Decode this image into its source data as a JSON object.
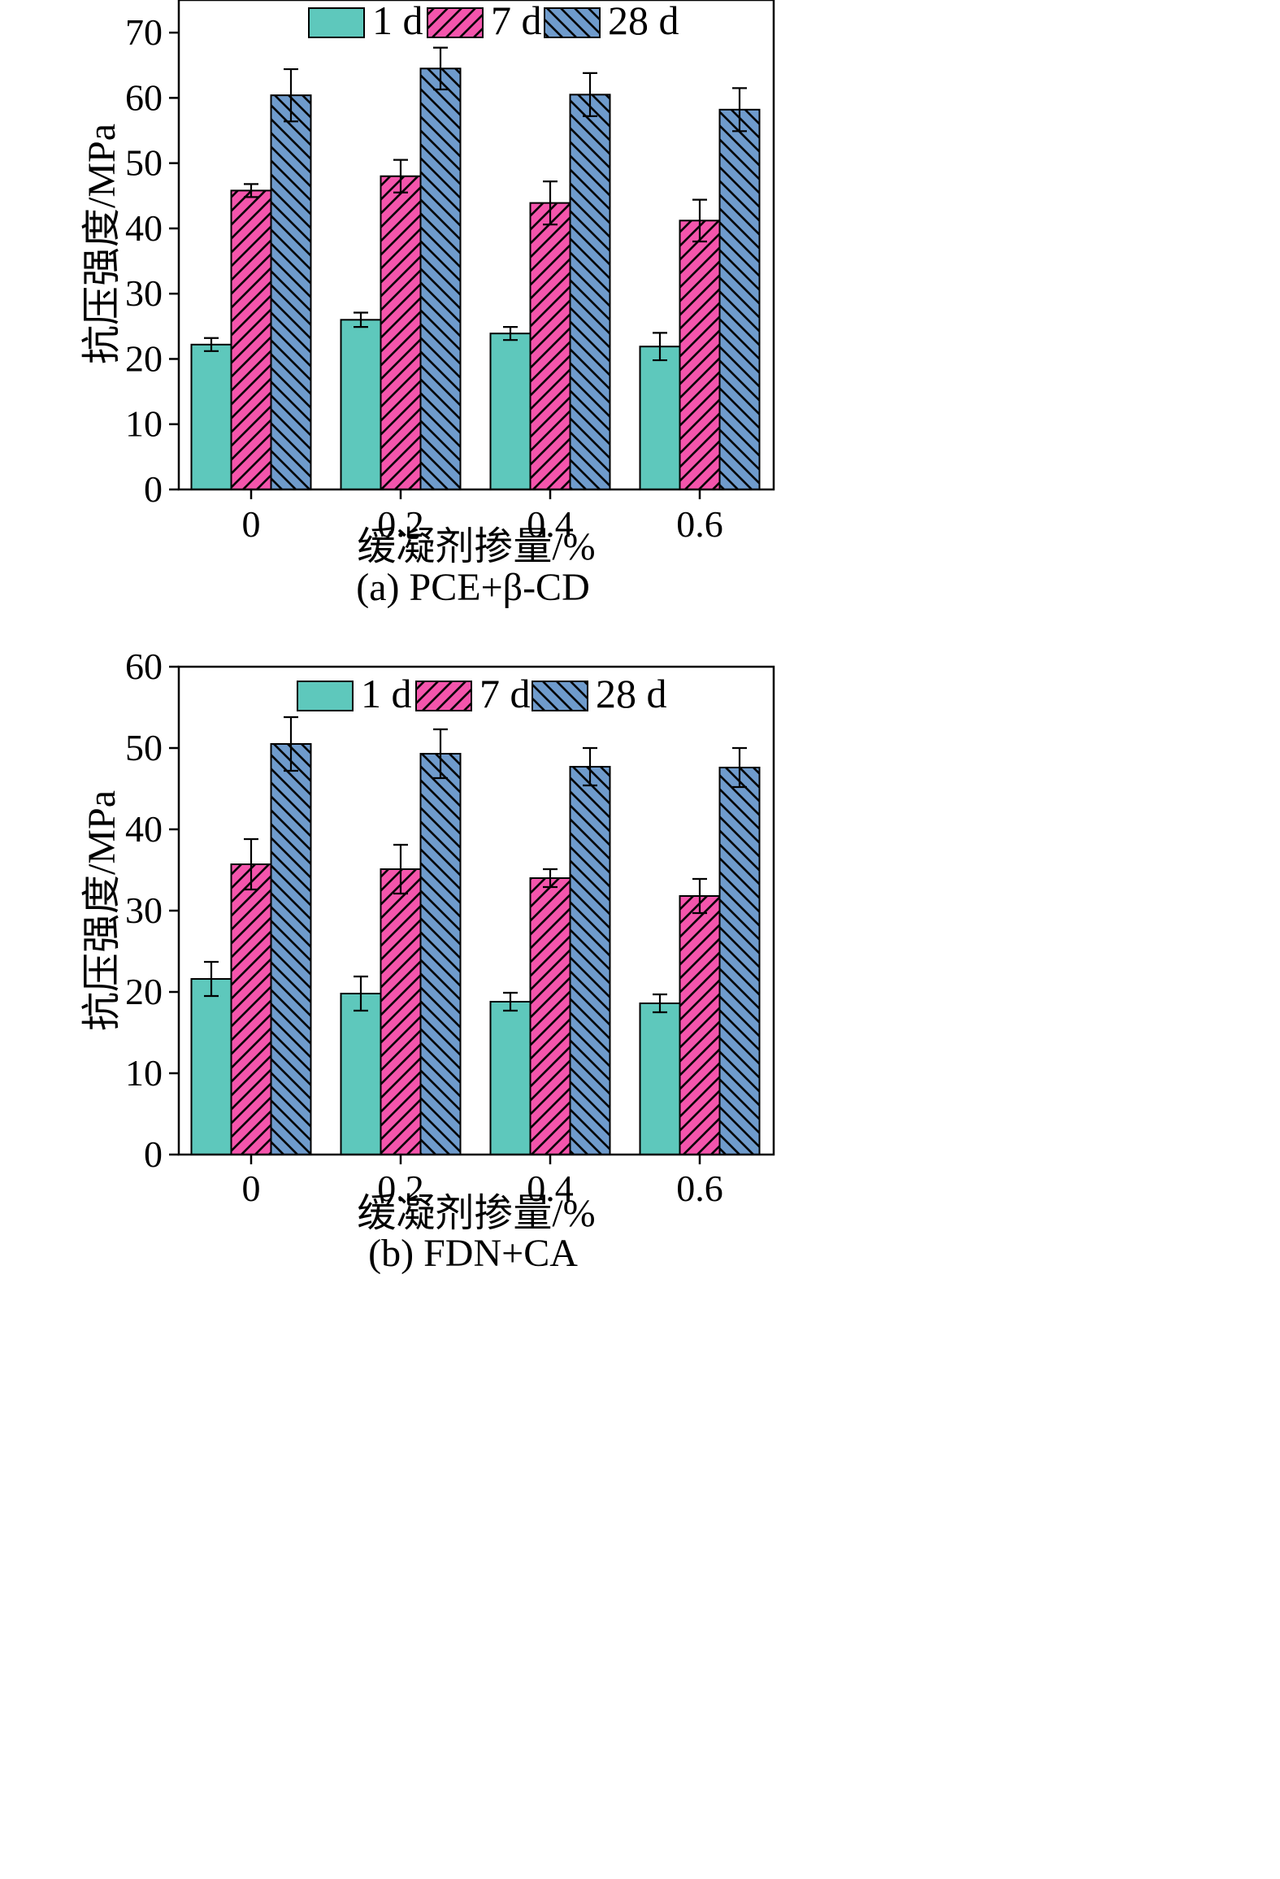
{
  "colors": {
    "1d": "#5ec8bc",
    "7d": "#f455ac",
    "28d": "#6f9bcc",
    "hatch": "#000000",
    "axis": "#000000"
  },
  "chart_data": [
    {
      "type": "bar",
      "caption": "(a) PCE+β-CD",
      "xlabel": "缓凝剂掺量/%",
      "ylabel": "抗压强度/MPa",
      "categories": [
        "0",
        "0.2",
        "0.4",
        "0.6"
      ],
      "ylim": [
        0,
        75
      ],
      "yticks": [
        "0",
        "10",
        "20",
        "30",
        "40",
        "50",
        "60",
        "70"
      ],
      "legend_position": "top",
      "series": [
        {
          "name": "1 d",
          "pattern": "solid",
          "values": [
            22.2,
            26.0,
            23.9,
            21.9
          ],
          "errors": [
            1.0,
            1.1,
            1.0,
            2.1
          ]
        },
        {
          "name": "7 d",
          "pattern": "hatch-up",
          "values": [
            45.8,
            48.0,
            43.9,
            41.2
          ],
          "errors": [
            1.0,
            2.5,
            3.3,
            3.2
          ]
        },
        {
          "name": "28 d",
          "pattern": "hatch-down",
          "values": [
            60.4,
            64.5,
            60.5,
            58.2
          ],
          "errors": [
            4.0,
            3.2,
            3.3,
            3.3
          ]
        }
      ]
    },
    {
      "type": "bar",
      "caption": "(b) FDN+CA",
      "xlabel": "缓凝剂掺量/%",
      "ylabel": "抗压强度/MPa",
      "categories": [
        "0",
        "0.2",
        "0.4",
        "0.6"
      ],
      "ylim": [
        0,
        60
      ],
      "yticks": [
        "0",
        "10",
        "20",
        "30",
        "40",
        "50",
        "60"
      ],
      "legend_position": "top",
      "series": [
        {
          "name": "1 d",
          "pattern": "solid",
          "values": [
            21.6,
            19.8,
            18.8,
            18.6
          ],
          "errors": [
            2.1,
            2.1,
            1.1,
            1.1
          ]
        },
        {
          "name": "7 d",
          "pattern": "hatch-up",
          "values": [
            35.7,
            35.1,
            34.0,
            31.8
          ],
          "errors": [
            3.1,
            3.0,
            1.1,
            2.1
          ]
        },
        {
          "name": "28 d",
          "pattern": "hatch-down",
          "values": [
            50.5,
            49.3,
            47.7,
            47.6
          ],
          "errors": [
            3.3,
            3.0,
            2.3,
            2.4
          ]
        }
      ]
    }
  ]
}
